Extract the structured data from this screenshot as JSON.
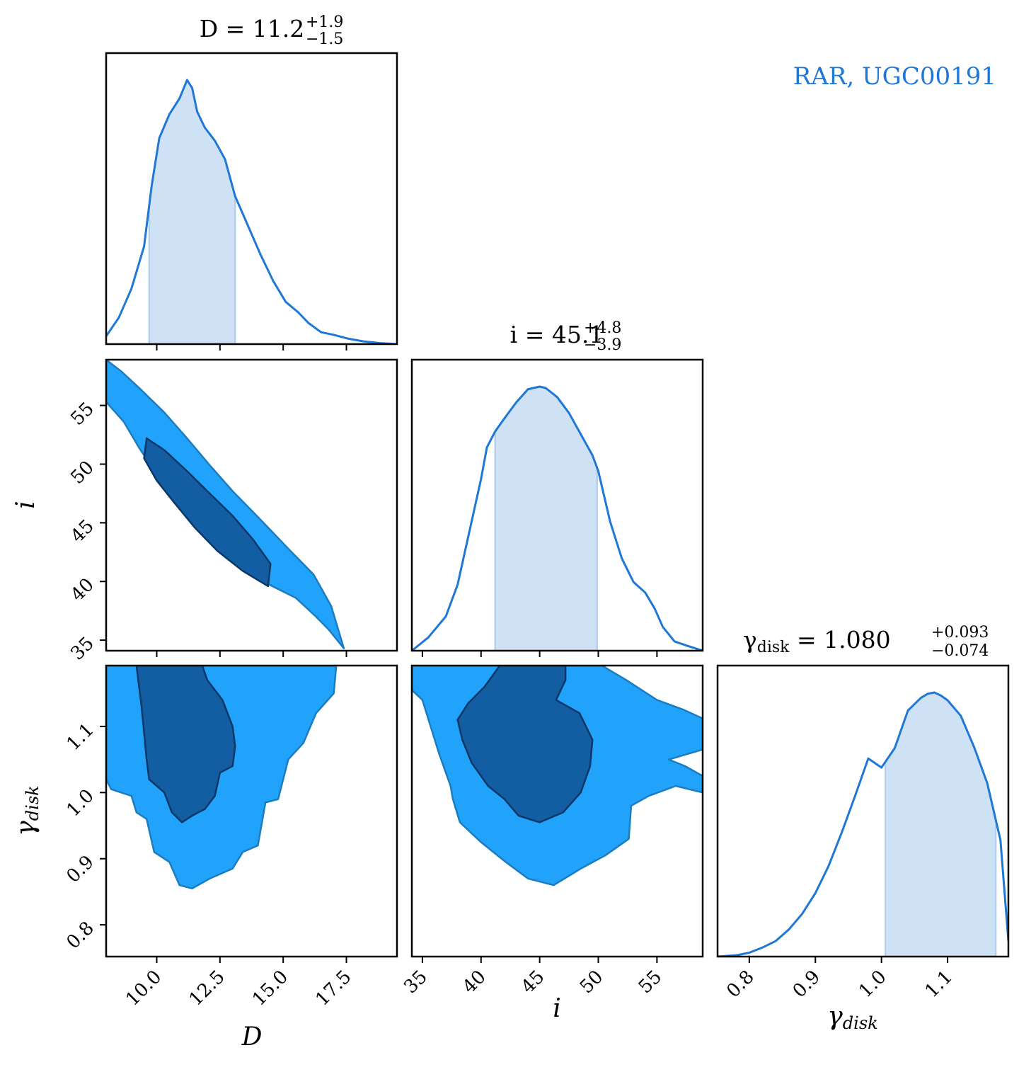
{
  "figure": {
    "legend_label": "RAR, UGC00191",
    "legend_color": "#1f77d6",
    "colors": {
      "line": "#1f77d6",
      "band_fill": "#cfe2f5",
      "band_edge": "#a9cbee",
      "contour_outer": "#22a3fb",
      "contour_outer_edge": "#1c7cc0",
      "contour_inner": "#135ea3",
      "contour_inner_edge": "#0b3766",
      "frame": "#000000"
    }
  },
  "titles": {
    "D": {
      "prefix": "D = 11.2",
      "sup": "+1.9",
      "sub": "−1.5"
    },
    "i": {
      "prefix": "i = 45.1",
      "sup": "+4.8",
      "sub": "−3.9"
    },
    "gamma": {
      "prefix": "γ",
      "prefix_sub": "disk",
      "mid": " = 1.080",
      "sup": "+0.093",
      "sub": "−0.074"
    }
  },
  "axis_labels": {
    "D": "D",
    "i": "i",
    "gamma": "γ",
    "gamma_sub": "disk"
  },
  "chart_data": {
    "type": "corner",
    "parameters": [
      "D",
      "i",
      "γdisk"
    ],
    "ranges": {
      "D": [
        8.0,
        19.5
      ],
      "i": [
        34.1,
        58.9
      ],
      "gamma": [
        0.752,
        1.192
      ]
    },
    "ticks": {
      "D": [
        "10.0",
        "12.5",
        "15.0",
        "17.5"
      ],
      "i": [
        "35",
        "40",
        "45",
        "50",
        "55"
      ],
      "gamma": [
        "0.8",
        "0.9",
        "1.0",
        "1.1"
      ]
    },
    "tick_values": {
      "D": [
        10.0,
        12.5,
        15.0,
        17.5
      ],
      "i": [
        35,
        40,
        45,
        50,
        55
      ],
      "gamma": [
        0.8,
        0.9,
        1.0,
        1.1
      ]
    },
    "marginals": {
      "D": {
        "median": 11.2,
        "plus": 1.9,
        "minus": 1.5,
        "band": [
          9.7,
          13.1
        ],
        "x": [
          8.0,
          8.5,
          9.0,
          9.5,
          9.8,
          10.1,
          10.5,
          10.9,
          11.2,
          11.4,
          11.6,
          11.9,
          12.3,
          12.7,
          13.1,
          13.6,
          14.1,
          14.6,
          15.1,
          15.6,
          16.0,
          16.5,
          17.0,
          17.6,
          18.2,
          18.8,
          19.5
        ],
        "density": [
          0.03,
          0.1,
          0.21,
          0.37,
          0.6,
          0.78,
          0.87,
          0.93,
          1.0,
          0.97,
          0.88,
          0.82,
          0.77,
          0.7,
          0.56,
          0.45,
          0.34,
          0.24,
          0.16,
          0.12,
          0.08,
          0.045,
          0.035,
          0.02,
          0.01,
          0.004,
          0.0
        ]
      },
      "i": {
        "median": 45.1,
        "plus": 4.8,
        "minus": 3.9,
        "band": [
          41.2,
          49.9
        ],
        "x": [
          34.1,
          35.5,
          37.0,
          38.0,
          39.0,
          40.0,
          40.5,
          41.2,
          42.0,
          43.0,
          44.0,
          45.0,
          45.5,
          46.5,
          47.5,
          48.5,
          49.5,
          50.0,
          51.0,
          52.0,
          53.0,
          54.0,
          54.8,
          55.5,
          56.5,
          57.5,
          58.9
        ],
        "density": [
          0.0,
          0.05,
          0.13,
          0.25,
          0.45,
          0.65,
          0.77,
          0.83,
          0.88,
          0.94,
          0.99,
          1.0,
          0.995,
          0.96,
          0.9,
          0.82,
          0.74,
          0.68,
          0.49,
          0.35,
          0.26,
          0.22,
          0.16,
          0.09,
          0.035,
          0.02,
          0.0
        ]
      },
      "gamma": {
        "median": 1.08,
        "plus": 0.093,
        "minus": 0.074,
        "band": [
          1.006,
          1.173
        ],
        "x": [
          0.752,
          0.78,
          0.8,
          0.82,
          0.84,
          0.86,
          0.88,
          0.9,
          0.92,
          0.94,
          0.96,
          0.98,
          1.0,
          1.02,
          1.04,
          1.06,
          1.07,
          1.08,
          1.09,
          1.1,
          1.12,
          1.14,
          1.16,
          1.18,
          1.192
        ],
        "density": [
          0.0,
          0.005,
          0.015,
          0.035,
          0.06,
          0.105,
          0.165,
          0.245,
          0.35,
          0.48,
          0.62,
          0.765,
          0.73,
          0.805,
          0.95,
          1.0,
          1.015,
          1.02,
          1.008,
          0.99,
          0.93,
          0.81,
          0.67,
          0.45,
          0.06
        ]
      }
    },
    "contours": {
      "D_vs_i": {
        "outer": [
          [
            8.0,
            58.9
          ],
          [
            8.6,
            57.9
          ],
          [
            9.4,
            56.3
          ],
          [
            10.3,
            54.4
          ],
          [
            11.2,
            52.2
          ],
          [
            12.1,
            49.9
          ],
          [
            13.0,
            47.7
          ],
          [
            14.0,
            45.5
          ],
          [
            15.2,
            42.8
          ],
          [
            16.2,
            40.6
          ],
          [
            16.9,
            37.9
          ],
          [
            17.4,
            34.3
          ],
          [
            16.8,
            35.9
          ],
          [
            16.3,
            37.0
          ],
          [
            15.5,
            38.6
          ],
          [
            14.2,
            40.0
          ],
          [
            13.2,
            41.5
          ],
          [
            12.1,
            43.6
          ],
          [
            11.1,
            46.2
          ],
          [
            10.1,
            48.8
          ],
          [
            9.3,
            51.4
          ],
          [
            8.7,
            53.6
          ],
          [
            8.0,
            55.3
          ]
        ],
        "inner": [
          [
            9.6,
            52.2
          ],
          [
            10.3,
            51.2
          ],
          [
            11.2,
            49.4
          ],
          [
            12.0,
            47.7
          ],
          [
            13.0,
            45.6
          ],
          [
            13.8,
            43.6
          ],
          [
            14.5,
            41.5
          ],
          [
            14.4,
            39.6
          ],
          [
            13.4,
            40.9
          ],
          [
            12.4,
            42.6
          ],
          [
            11.5,
            44.6
          ],
          [
            10.7,
            46.7
          ],
          [
            10.0,
            48.6
          ],
          [
            9.5,
            50.5
          ]
        ]
      },
      "D_vs_gamma": {
        "outer": [
          [
            8.0,
            1.192
          ],
          [
            17.1,
            1.192
          ],
          [
            17.0,
            1.15
          ],
          [
            16.3,
            1.12
          ],
          [
            15.8,
            1.075
          ],
          [
            15.2,
            1.05
          ],
          [
            14.8,
            0.99
          ],
          [
            14.3,
            0.985
          ],
          [
            14.0,
            0.92
          ],
          [
            13.4,
            0.91
          ],
          [
            13.0,
            0.885
          ],
          [
            12.1,
            0.87
          ],
          [
            11.4,
            0.855
          ],
          [
            10.9,
            0.86
          ],
          [
            10.5,
            0.895
          ],
          [
            9.9,
            0.91
          ],
          [
            9.6,
            0.96
          ],
          [
            9.2,
            0.97
          ],
          [
            9.0,
            0.995
          ],
          [
            8.2,
            1.005
          ],
          [
            8.0,
            1.02
          ]
        ],
        "inner": [
          [
            9.2,
            1.192
          ],
          [
            11.8,
            1.192
          ],
          [
            12.0,
            1.17
          ],
          [
            12.6,
            1.14
          ],
          [
            12.8,
            1.12
          ],
          [
            13.0,
            1.1
          ],
          [
            13.1,
            1.07
          ],
          [
            13.0,
            1.04
          ],
          [
            12.5,
            1.03
          ],
          [
            12.3,
            0.995
          ],
          [
            11.9,
            0.975
          ],
          [
            11.4,
            0.965
          ],
          [
            11.0,
            0.955
          ],
          [
            10.6,
            0.97
          ],
          [
            10.3,
            1.0
          ],
          [
            9.7,
            1.02
          ],
          [
            9.6,
            1.05
          ],
          [
            9.5,
            1.09
          ],
          [
            9.4,
            1.13
          ],
          [
            9.3,
            1.16
          ]
        ]
      },
      "i_vs_gamma": {
        "outer": [
          [
            34.1,
            1.192
          ],
          [
            50.3,
            1.192
          ],
          [
            52.4,
            1.17
          ],
          [
            55.0,
            1.14
          ],
          [
            57.3,
            1.125
          ],
          [
            58.9,
            1.112
          ],
          [
            58.9,
            1.065
          ],
          [
            56.0,
            1.05
          ],
          [
            57.4,
            1.04
          ],
          [
            58.9,
            1.025
          ],
          [
            58.9,
            1.0
          ],
          [
            56.6,
            1.01
          ],
          [
            54.3,
            0.995
          ],
          [
            52.8,
            0.98
          ],
          [
            52.6,
            0.93
          ],
          [
            50.6,
            0.905
          ],
          [
            48.5,
            0.885
          ],
          [
            46.2,
            0.86
          ],
          [
            44.0,
            0.87
          ],
          [
            42.1,
            0.895
          ],
          [
            40.0,
            0.925
          ],
          [
            38.2,
            0.955
          ],
          [
            37.6,
            0.99
          ],
          [
            37.4,
            1.01
          ],
          [
            36.4,
            1.06
          ],
          [
            35.7,
            1.1
          ],
          [
            35.0,
            1.14
          ],
          [
            34.1,
            1.155
          ]
        ],
        "inner": [
          [
            41.6,
            1.192
          ],
          [
            47.2,
            1.192
          ],
          [
            47.2,
            1.17
          ],
          [
            46.4,
            1.14
          ],
          [
            48.4,
            1.12
          ],
          [
            49.5,
            1.08
          ],
          [
            49.3,
            1.04
          ],
          [
            48.5,
            1.0
          ],
          [
            47.0,
            0.97
          ],
          [
            45.0,
            0.955
          ],
          [
            43.2,
            0.965
          ],
          [
            42.0,
            0.99
          ],
          [
            40.6,
            1.01
          ],
          [
            39.2,
            1.045
          ],
          [
            38.4,
            1.08
          ],
          [
            38.0,
            1.11
          ],
          [
            38.9,
            1.135
          ],
          [
            40.3,
            1.16
          ]
        ]
      }
    }
  }
}
